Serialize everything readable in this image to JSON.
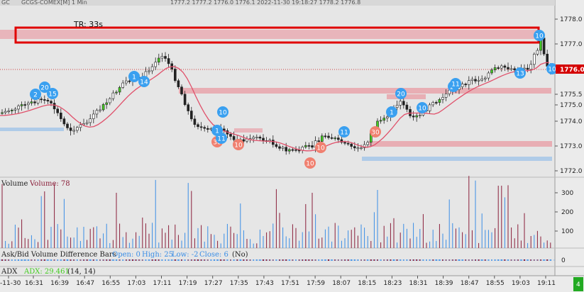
{
  "header": {
    "title_prefix": "GC",
    "title_dots": "□",
    "instrument": "GCGS-COMEX[M] 1 Min",
    "readout": "1777.2  1777.2  1776.0  1776.1  2022-11-30 19:18:27  1778.2  1776.8"
  },
  "timer_label": "TR: 33s",
  "price_axis": {
    "ticks": [
      "1778.0",
      "1777.0",
      "1775.5",
      "1775.0",
      "1774.0",
      "1773.0",
      "1772.0"
    ],
    "current_price": "1776.0",
    "current_price_color": "#d40000"
  },
  "volume_panel": {
    "title": "Volume",
    "value_label": "Volume: 78",
    "ticks": [
      "300",
      "200",
      "100"
    ]
  },
  "askbid_panel": {
    "title": "Ask/Bid Volume Difference Bars",
    "open": "Open: 0",
    "high": "High: 25",
    "low": "Low: -2",
    "close": "Close: 6",
    "no": "(No)",
    "zero_tick": "0"
  },
  "adx_panel": {
    "title": "ADX",
    "value": "ADX: 29.461",
    "params": "(14, 14)"
  },
  "time_axis": {
    "labels": [
      "-11-30",
      "16:31",
      "16:39",
      "16:47",
      "16:55",
      "17:03",
      "17:11",
      "17:19",
      "17:27",
      "17:35",
      "17:43",
      "17:51",
      "17:59",
      "18:07",
      "18:15",
      "18:23",
      "18:31",
      "18:39",
      "18:47",
      "18:55",
      "19:03",
      "19:11"
    ],
    "corner": "4"
  },
  "markers": [
    {
      "label": "2",
      "color": "#3aa0f0"
    },
    {
      "label": "20",
      "color": "#3aa0f0"
    },
    {
      "label": "15",
      "color": "#3aa0f0"
    },
    {
      "label": "1",
      "color": "#3aa0f0"
    },
    {
      "label": "14",
      "color": "#3aa0f0"
    },
    {
      "label": "10",
      "color": "#3aa0f0"
    },
    {
      "label": "1",
      "color": "#3aa0f0"
    },
    {
      "label": "30",
      "color": "#f08070"
    },
    {
      "label": "10",
      "color": "#f08070"
    },
    {
      "label": "11",
      "color": "#3aa0f0"
    },
    {
      "label": "10",
      "color": "#f08070"
    },
    {
      "label": "10",
      "color": "#f08070"
    },
    {
      "label": "11",
      "color": "#3aa0f0"
    },
    {
      "label": "30",
      "color": "#f08070"
    },
    {
      "label": "1",
      "color": "#3aa0f0"
    },
    {
      "label": "20",
      "color": "#3aa0f0"
    },
    {
      "label": "10",
      "color": "#3aa0f0"
    },
    {
      "label": "10",
      "color": "#3aa0f0"
    },
    {
      "label": "11",
      "color": "#3aa0f0"
    },
    {
      "label": "13",
      "color": "#3aa0f0"
    },
    {
      "label": "10",
      "color": "#3aa0f0"
    },
    {
      "label": "10",
      "color": "#3aa0f0"
    }
  ],
  "colors": {
    "highlight_box": "#e00000",
    "sma_line": "#e0506a",
    "up_candle_accent": "#44cc22",
    "volume_bar": "#3a8ee6",
    "zone_red": "#e8a0a8",
    "zone_blue": "#a8c8e8"
  }
}
